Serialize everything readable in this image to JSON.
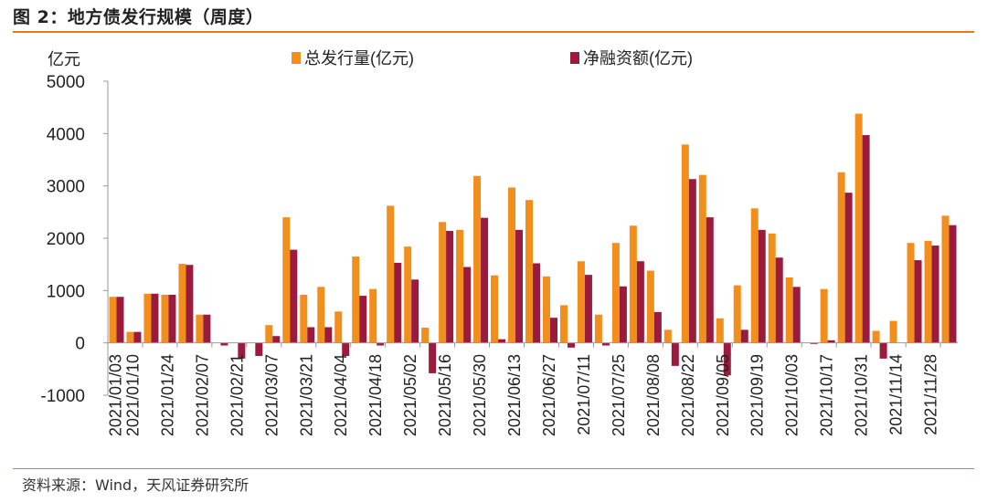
{
  "figure_title": "图 2：地方债发行规模（周度）",
  "source_text": "资料来源：Wind，天风证券研究所",
  "colors": {
    "accent": "#e87722",
    "gross": "#f28e1c",
    "net": "#9b1b3f"
  },
  "chart_data": {
    "type": "bar",
    "title": "",
    "ylabel": "亿元",
    "xlabel": "",
    "ylim": [
      -1000,
      5000
    ],
    "yticks": [
      -1000,
      0,
      1000,
      2000,
      3000,
      4000,
      5000
    ],
    "legend_position": "top",
    "grid": false,
    "categories": [
      "2021/01/03",
      "2021/01/10",
      "2021/01/17",
      "2021/01/24",
      "2021/01/31",
      "2021/02/07",
      "2021/02/14",
      "2021/02/21",
      "2021/02/28",
      "2021/03/07",
      "2021/03/14",
      "2021/03/21",
      "2021/03/28",
      "2021/04/04",
      "2021/04/11",
      "2021/04/18",
      "2021/04/25",
      "2021/05/02",
      "2021/05/09",
      "2021/05/16",
      "2021/05/23",
      "2021/05/30",
      "2021/06/06",
      "2021/06/13",
      "2021/06/20",
      "2021/06/27",
      "2021/07/04",
      "2021/07/11",
      "2021/07/18",
      "2021/07/25",
      "2021/08/01",
      "2021/08/08",
      "2021/08/15",
      "2021/08/22",
      "2021/08/29",
      "2021/09/05",
      "2021/09/12",
      "2021/09/19",
      "2021/09/26",
      "2021/10/03",
      "2021/10/10",
      "2021/10/17",
      "2021/10/24",
      "2021/10/31",
      "2021/11/07",
      "2021/11/14",
      "2021/11/21",
      "2021/11/28",
      "2021/12/05"
    ],
    "labeled_ticks": [
      "2021/01/03",
      "2021/01/10",
      "2021/01/24",
      "2021/02/07",
      "2021/02/21",
      "2021/03/07",
      "2021/03/21",
      "2021/04/04",
      "2021/04/18",
      "2021/05/02",
      "2021/05/16",
      "2021/05/30",
      "2021/06/13",
      "2021/06/27",
      "2021/07/11",
      "2021/07/25",
      "2021/08/08",
      "2021/08/22",
      "2021/09/05",
      "2021/09/19",
      "2021/10/03",
      "2021/10/17",
      "2021/10/31",
      "2021/11/14",
      "2021/11/28"
    ],
    "series": [
      {
        "name": "总发行量(亿元)",
        "values": [
          880,
          210,
          940,
          920,
          1510,
          540,
          0,
          0,
          0,
          340,
          2400,
          920,
          1070,
          600,
          1650,
          1030,
          2620,
          1840,
          290,
          2310,
          2160,
          3190,
          1290,
          2970,
          2730,
          1270,
          720,
          1560,
          540,
          1910,
          2240,
          1380,
          250,
          3790,
          3210,
          470,
          1100,
          2570,
          2090,
          1250,
          0,
          1030,
          3260,
          4380,
          230,
          420,
          1910,
          1950,
          2430
        ]
      },
      {
        "name": "净融资额(亿元)",
        "values": [
          880,
          210,
          940,
          920,
          1490,
          540,
          -50,
          -300,
          -250,
          130,
          1780,
          300,
          300,
          -250,
          900,
          -50,
          1530,
          1210,
          -580,
          2140,
          1450,
          2390,
          70,
          2160,
          1520,
          480,
          -90,
          1300,
          -50,
          1080,
          1560,
          590,
          -440,
          3130,
          2400,
          -620,
          250,
          2160,
          1630,
          1070,
          -20,
          50,
          2870,
          3970,
          -300,
          0,
          1580,
          1860,
          2250
        ]
      }
    ]
  }
}
